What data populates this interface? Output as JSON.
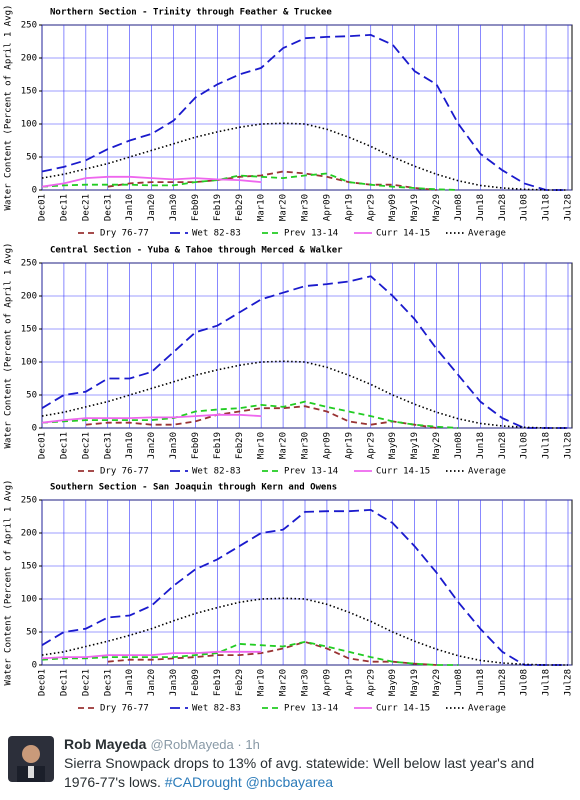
{
  "chart_data": [
    {
      "type": "line",
      "title": "Northern Section - Trinity through Feather & Truckee",
      "y_label": "Water Content (Percent of April 1 Avg)",
      "categories": [
        "Dec01",
        "Dec11",
        "Dec21",
        "Dec31",
        "Jan10",
        "Jan20",
        "Jan30",
        "Feb09",
        "Feb19",
        "Feb29",
        "Mar10",
        "Mar20",
        "Mar30",
        "Apr09",
        "Apr19",
        "Apr29",
        "May09",
        "May19",
        "May29",
        "Jun08",
        "Jun18",
        "Jun28",
        "Jul08",
        "Jul18",
        "Jul28"
      ],
      "ylim": [
        0,
        250
      ],
      "yticks": [
        0,
        50,
        100,
        150,
        200,
        250
      ],
      "grid": true,
      "series": [
        {
          "name": "Dry 76-77",
          "color": "#993333",
          "dash": "dashed",
          "values": [
            null,
            null,
            null,
            5,
            10,
            12,
            12,
            12,
            15,
            20,
            22,
            28,
            25,
            20,
            12,
            8,
            8,
            3,
            0,
            null,
            null,
            null,
            null,
            null,
            null
          ]
        },
        {
          "name": "Wet 82-83",
          "color": "#1a1acc",
          "dash": "longdash",
          "values": [
            28,
            35,
            45,
            62,
            75,
            85,
            105,
            140,
            160,
            175,
            185,
            215,
            230,
            232,
            233,
            235,
            220,
            180,
            160,
            100,
            55,
            30,
            10,
            0,
            0
          ]
        },
        {
          "name": "Prev 13-14",
          "color": "#22cc22",
          "dash": "dashed",
          "values": [
            5,
            7,
            8,
            8,
            8,
            7,
            7,
            12,
            15,
            22,
            20,
            18,
            22,
            25,
            12,
            8,
            5,
            3,
            1,
            0,
            null,
            null,
            null,
            null,
            null
          ]
        },
        {
          "name": "Curr 14-15",
          "color": "#ee66ee",
          "dash": "solid",
          "values": [
            5,
            10,
            18,
            20,
            20,
            18,
            16,
            18,
            16,
            15,
            12,
            null,
            null,
            null,
            null,
            null,
            null,
            null,
            null,
            null,
            null,
            null,
            null,
            null,
            null
          ]
        },
        {
          "name": "Average",
          "color": "#000000",
          "dash": "dotted",
          "values": [
            18,
            24,
            32,
            40,
            50,
            60,
            70,
            80,
            88,
            95,
            100,
            101,
            100,
            92,
            80,
            66,
            50,
            36,
            24,
            14,
            7,
            3,
            1,
            0,
            0
          ]
        }
      ]
    },
    {
      "type": "line",
      "title": "Central Section - Yuba & Tahoe through Merced & Walker",
      "y_label": "Water Content (Percent of April 1 Avg)",
      "categories": [
        "Dec01",
        "Dec11",
        "Dec21",
        "Dec31",
        "Jan10",
        "Jan20",
        "Jan30",
        "Feb09",
        "Feb19",
        "Feb29",
        "Mar10",
        "Mar20",
        "Mar30",
        "Apr09",
        "Apr19",
        "Apr29",
        "May09",
        "May19",
        "May29",
        "Jun08",
        "Jun18",
        "Jun28",
        "Jul08",
        "Jul18",
        "Jul28"
      ],
      "ylim": [
        0,
        250
      ],
      "yticks": [
        0,
        50,
        100,
        150,
        200,
        250
      ],
      "grid": true,
      "series": [
        {
          "name": "Dry 76-77",
          "color": "#993333",
          "dash": "dashed",
          "values": [
            null,
            null,
            5,
            8,
            8,
            5,
            5,
            10,
            20,
            25,
            30,
            30,
            33,
            25,
            10,
            5,
            10,
            5,
            0,
            null,
            null,
            null,
            null,
            null,
            null
          ]
        },
        {
          "name": "Wet 82-83",
          "color": "#1a1acc",
          "dash": "longdash",
          "values": [
            30,
            50,
            55,
            75,
            75,
            85,
            115,
            145,
            155,
            175,
            195,
            205,
            215,
            218,
            222,
            230,
            200,
            165,
            120,
            80,
            40,
            15,
            0,
            0,
            0
          ]
        },
        {
          "name": "Prev 13-14",
          "color": "#22cc22",
          "dash": "dashed",
          "values": [
            8,
            10,
            12,
            12,
            12,
            12,
            15,
            25,
            28,
            30,
            35,
            32,
            40,
            32,
            25,
            18,
            10,
            5,
            2,
            0,
            null,
            null,
            null,
            null,
            null
          ]
        },
        {
          "name": "Curr 14-15",
          "color": "#ee66ee",
          "dash": "solid",
          "values": [
            8,
            12,
            15,
            15,
            15,
            16,
            16,
            18,
            20,
            20,
            18,
            null,
            null,
            null,
            null,
            null,
            null,
            null,
            null,
            null,
            null,
            null,
            null,
            null,
            null
          ]
        },
        {
          "name": "Average",
          "color": "#000000",
          "dash": "dotted",
          "values": [
            18,
            24,
            32,
            40,
            50,
            60,
            70,
            80,
            88,
            95,
            100,
            101,
            100,
            92,
            80,
            66,
            50,
            36,
            24,
            14,
            7,
            3,
            1,
            0,
            0
          ]
        }
      ]
    },
    {
      "type": "line",
      "title": "Southern Section - San Joaquin through Kern and Owens",
      "y_label": "Water Content (Percent of April 1 Avg)",
      "categories": [
        "Dec01",
        "Dec11",
        "Dec21",
        "Dec31",
        "Jan10",
        "Jan20",
        "Jan30",
        "Feb09",
        "Feb19",
        "Feb29",
        "Mar10",
        "Mar20",
        "Mar30",
        "Apr09",
        "Apr19",
        "Apr29",
        "May09",
        "May19",
        "May29",
        "Jun08",
        "Jun18",
        "Jun28",
        "Jul08",
        "Jul18",
        "Jul28"
      ],
      "ylim": [
        0,
        250
      ],
      "yticks": [
        0,
        50,
        100,
        150,
        200,
        250
      ],
      "grid": true,
      "series": [
        {
          "name": "Dry 76-77",
          "color": "#993333",
          "dash": "dashed",
          "values": [
            null,
            null,
            null,
            5,
            8,
            8,
            10,
            12,
            15,
            15,
            18,
            25,
            35,
            25,
            10,
            5,
            5,
            2,
            0,
            null,
            null,
            null,
            null,
            null,
            null
          ]
        },
        {
          "name": "Wet 82-83",
          "color": "#1a1acc",
          "dash": "longdash",
          "values": [
            30,
            50,
            55,
            72,
            75,
            90,
            120,
            145,
            160,
            180,
            200,
            205,
            232,
            233,
            233,
            235,
            215,
            180,
            140,
            95,
            55,
            20,
            0,
            0,
            0
          ]
        },
        {
          "name": "Prev 13-14",
          "color": "#22cc22",
          "dash": "dashed",
          "values": [
            8,
            10,
            10,
            12,
            12,
            12,
            12,
            15,
            18,
            32,
            30,
            28,
            35,
            28,
            20,
            12,
            5,
            2,
            0,
            0,
            null,
            null,
            null,
            null,
            null
          ]
        },
        {
          "name": "Curr 14-15",
          "color": "#ee66ee",
          "dash": "solid",
          "values": [
            10,
            12,
            12,
            15,
            15,
            15,
            18,
            18,
            20,
            20,
            20,
            null,
            null,
            null,
            null,
            null,
            null,
            null,
            null,
            null,
            null,
            null,
            null,
            null,
            null
          ]
        },
        {
          "name": "Average",
          "color": "#000000",
          "dash": "dotted",
          "values": [
            15,
            20,
            28,
            36,
            45,
            55,
            67,
            78,
            87,
            95,
            100,
            101,
            100,
            92,
            80,
            66,
            50,
            36,
            24,
            14,
            7,
            3,
            1,
            0,
            0
          ]
        }
      ]
    }
  ],
  "tweet": {
    "name": "Rob Mayeda",
    "handle": "@RobMayeda",
    "separator": "·",
    "time": "1h",
    "text": "Sierra Snowpack drops to 13% of avg. statewide: Well below last year's and 1976-77's lows.",
    "hashtag": "#CADrought",
    "mention": "@nbcbayarea"
  }
}
